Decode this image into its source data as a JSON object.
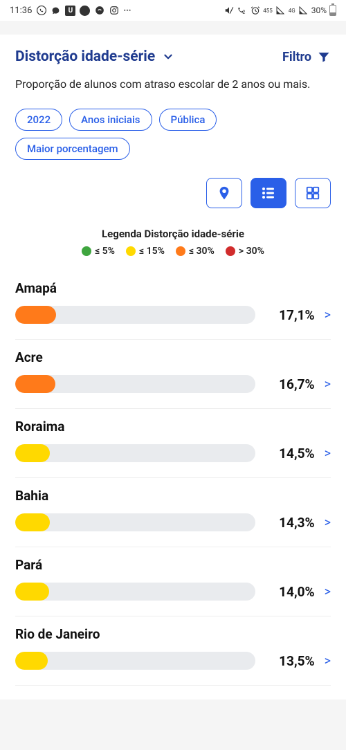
{
  "status_bar": {
    "time": "11:36",
    "battery_pct": "30%"
  },
  "header": {
    "title": "Distorção idade-série",
    "filter_label": "Filtro"
  },
  "description": "Proporção de alunos com atraso escolar de 2 anos ou mais.",
  "chips": {
    "year": "2022",
    "stage": "Anos iniciais",
    "network": "Pública",
    "sort": "Maior porcentagem"
  },
  "legend": {
    "title": "Legenda Distorção idade-série",
    "b1": {
      "label": "≤ 5%",
      "color": "#3fa53f"
    },
    "b2": {
      "label": "≤ 15%",
      "color": "#ffd900"
    },
    "b3": {
      "label": "≤ 30%",
      "color": "#ff7a1a"
    },
    "b4": {
      "label": "> 30%",
      "color": "#d12c2c"
    }
  },
  "items": {
    "0": {
      "name": "Amapá",
      "value": "17,1%",
      "width_pct": 17.1,
      "color": "#ff7a1a"
    },
    "1": {
      "name": "Acre",
      "value": "16,7%",
      "width_pct": 16.7,
      "color": "#ff7a1a"
    },
    "2": {
      "name": "Roraima",
      "value": "14,5%",
      "width_pct": 14.5,
      "color": "#ffd900"
    },
    "3": {
      "name": "Bahia",
      "value": "14,3%",
      "width_pct": 14.3,
      "color": "#ffd900"
    },
    "4": {
      "name": "Pará",
      "value": "14,0%",
      "width_pct": 14.0,
      "color": "#ffd900"
    },
    "5": {
      "name": "Rio de Janeiro",
      "value": "13,5%",
      "width_pct": 13.5,
      "color": "#ffd900"
    }
  },
  "colors": {
    "brand": "#1f3b8f",
    "accent": "#2a5fe8",
    "track": "#e9ebee"
  }
}
